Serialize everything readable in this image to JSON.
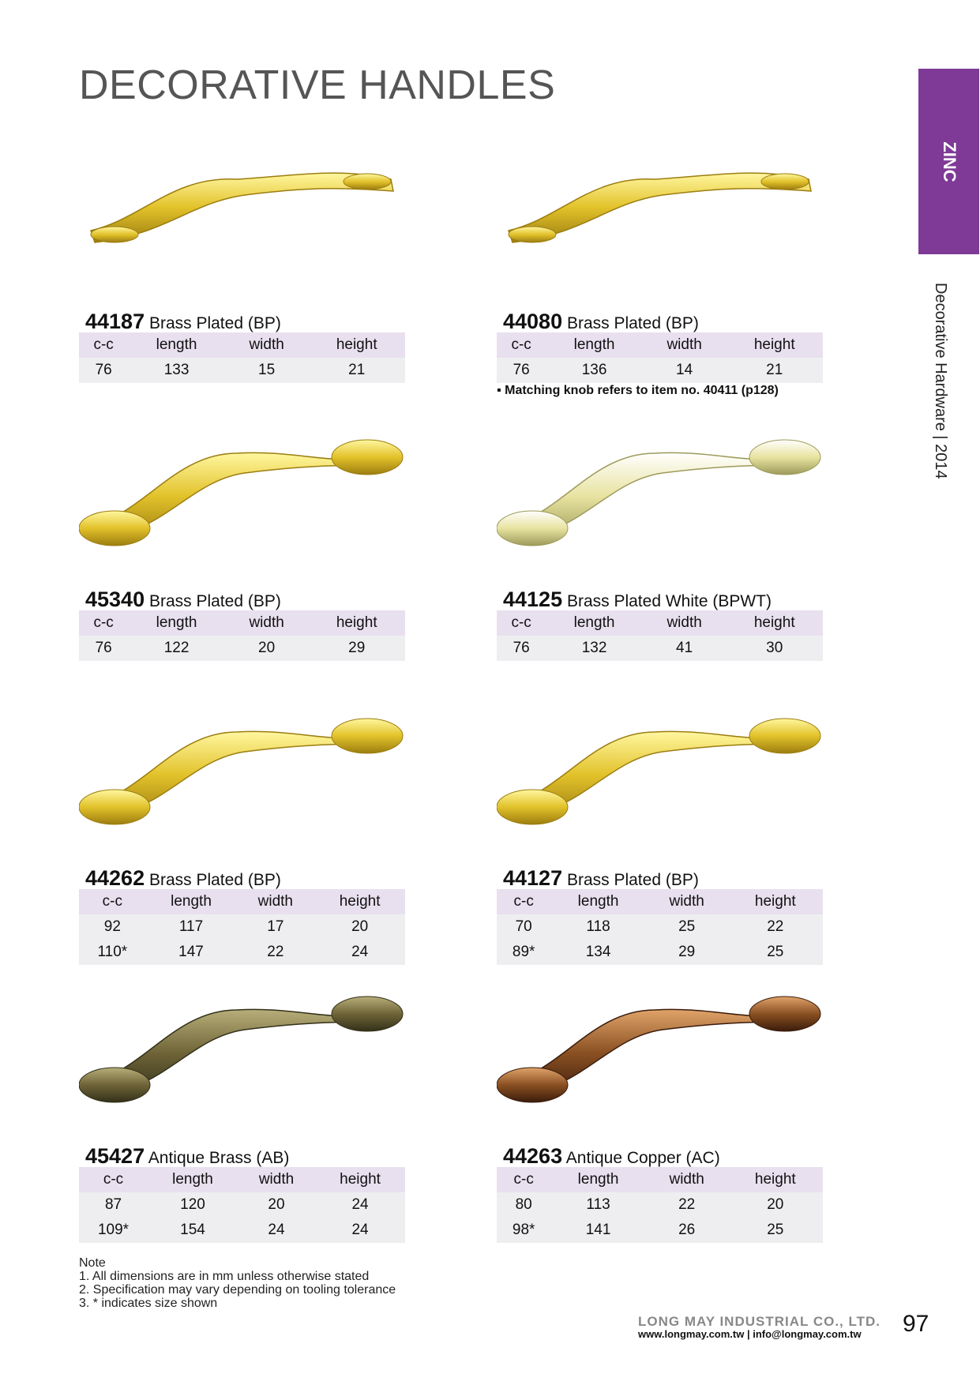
{
  "page_title": "DECORATIVE HANDLES",
  "tab_label": "ZINC",
  "side_label": "Decorative Hardware | 2014",
  "colors": {
    "tab": "#7e3a96",
    "table_header": "#e8e0ef",
    "table_row": "#eeeef0"
  },
  "columns": [
    "c-c",
    "length",
    "width",
    "height"
  ],
  "products": [
    {
      "code": "44187",
      "finish": "Brass Plated (BP)",
      "rows": [
        [
          "76",
          "133",
          "15",
          "21"
        ]
      ],
      "tone": "gold"
    },
    {
      "code": "44080",
      "finish": "Brass Plated (BP)",
      "rows": [
        [
          "76",
          "136",
          "14",
          "21"
        ]
      ],
      "remark": "▪ Matching knob refers to item no. 40411 (p128)",
      "tone": "gold"
    },
    {
      "code": "45340",
      "finish": "Brass Plated (BP)",
      "rows": [
        [
          "76",
          "122",
          "20",
          "29"
        ]
      ],
      "tone": "gold"
    },
    {
      "code": "44125",
      "finish": "Brass Plated White (BPWT)",
      "rows": [
        [
          "76",
          "132",
          "41",
          "30"
        ]
      ],
      "tone": "pale"
    },
    {
      "code": "44262",
      "finish": "Brass Plated (BP)",
      "rows": [
        [
          "92",
          "117",
          "17",
          "20"
        ],
        [
          "110*",
          "147",
          "22",
          "24"
        ]
      ],
      "tone": "gold"
    },
    {
      "code": "44127",
      "finish": "Brass Plated (BP)",
      "rows": [
        [
          "70",
          "118",
          "25",
          "22"
        ],
        [
          "89*",
          "134",
          "29",
          "25"
        ]
      ],
      "tone": "gold"
    },
    {
      "code": "45427",
      "finish": "Antique Brass (AB)",
      "rows": [
        [
          "87",
          "120",
          "20",
          "24"
        ],
        [
          "109*",
          "154",
          "24",
          "24"
        ]
      ],
      "tone": "antique-brass"
    },
    {
      "code": "44263",
      "finish": "Antique Copper (AC)",
      "rows": [
        [
          "80",
          "113",
          "22",
          "20"
        ],
        [
          "98*",
          "141",
          "26",
          "25"
        ]
      ],
      "tone": "antique-copper"
    }
  ],
  "note": {
    "heading": "Note",
    "items": [
      "1. All dimensions are in mm unless otherwise stated",
      "2. Specification may vary depending on tooling tolerance",
      "3. * indicates size shown"
    ]
  },
  "footer": {
    "company": "LONG MAY INDUSTRIAL CO., LTD.",
    "contact": "www.longmay.com.tw | info@longmay.com.tw",
    "page_number": "97"
  }
}
